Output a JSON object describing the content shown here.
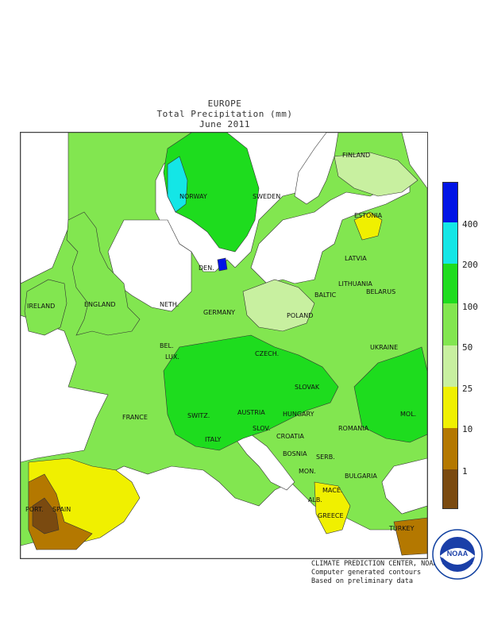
{
  "header": {
    "region": "EUROPE",
    "title": "Total Precipitation (mm)",
    "period": "June 2011"
  },
  "colors": {
    "c400": "#0014e6",
    "c200": "#14e6e6",
    "c100": "#1edc1e",
    "c50": "#82e650",
    "c25": "#c8f0a0",
    "c10": "#f0f000",
    "c1": "#b47800",
    "c0": "#7a4a10",
    "water": "#ffffff"
  },
  "legend": {
    "ticks": [
      "400",
      "200",
      "100",
      "50",
      "25",
      "10",
      "1"
    ]
  },
  "countries": [
    "FINLAND",
    "NORWAY",
    "SWEDEN",
    "ESTONIA",
    "LATVIA",
    "DEN.",
    "LITHUANIA",
    "BALTIC",
    "BELARUS",
    "IRELAND",
    "ENGLAND",
    "NETH.",
    "GERMANY",
    "POLAND",
    "BEL.",
    "LUX.",
    "CZECH.",
    "UKRAINE",
    "SLOVAK",
    "FRANCE",
    "SWITZ.",
    "AUSTRIA",
    "HUNGARY",
    "MOL.",
    "SLOV.",
    "CROATIA",
    "ROMANIA",
    "ITALY",
    "BOSNIA",
    "SERB.",
    "MON.",
    "BULGARIA",
    "ALB.",
    "MACE.",
    "PORT.",
    "SPAIN",
    "GREECE",
    "TURKEY"
  ],
  "credit": {
    "line1": "CLIMATE PREDICTION CENTER, NOAA",
    "line2": "Computer generated contours",
    "line3": "Based on preliminary data"
  },
  "logo": {
    "text": "NOAA",
    "ring": "NATIONAL OCEANIC AND ATMOSPHERIC ADMINISTRATION · U.S. DEPARTMENT OF COMMERCE"
  }
}
